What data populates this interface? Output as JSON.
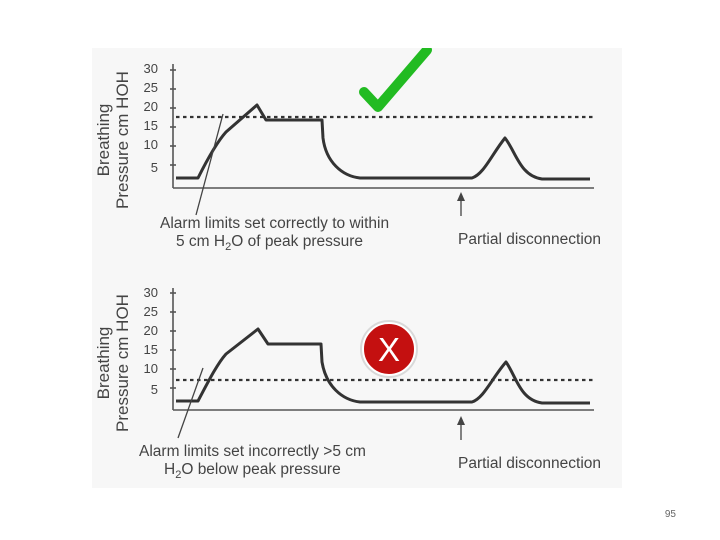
{
  "slide": {
    "page_number": "95"
  },
  "panels": [
    {
      "ylabel_line1": "Breathing",
      "ylabel_line2": "Pressure cm HOH",
      "yticks": [
        "30",
        "25",
        "20",
        "15",
        "10",
        "5"
      ],
      "caption_line1": "Alarm limits set correctly to within",
      "caption_line2_a": "5 cm H",
      "caption_line2_sub": "2",
      "caption_line2_b": "O of peak pressure",
      "disconnect_label": "Partial disconnection",
      "verdict": "correct",
      "verdict_icon": "green-checkmark-icon",
      "verdict_color": "#22bb22"
    },
    {
      "ylabel_line1": "Breathing",
      "ylabel_line2": "Pressure cm HOH",
      "yticks": [
        "30",
        "25",
        "20",
        "15",
        "10",
        "5"
      ],
      "caption_line1": "Alarm limits set incorrectly >5 cm",
      "caption_line2_a": "H",
      "caption_line2_sub": "2",
      "caption_line2_b": "O below peak pressure",
      "disconnect_label": "Partial disconnection",
      "verdict": "incorrect",
      "verdict_icon": "red-x-icon",
      "verdict_color": "#cc1111",
      "verdict_symbol": "X"
    }
  ]
}
